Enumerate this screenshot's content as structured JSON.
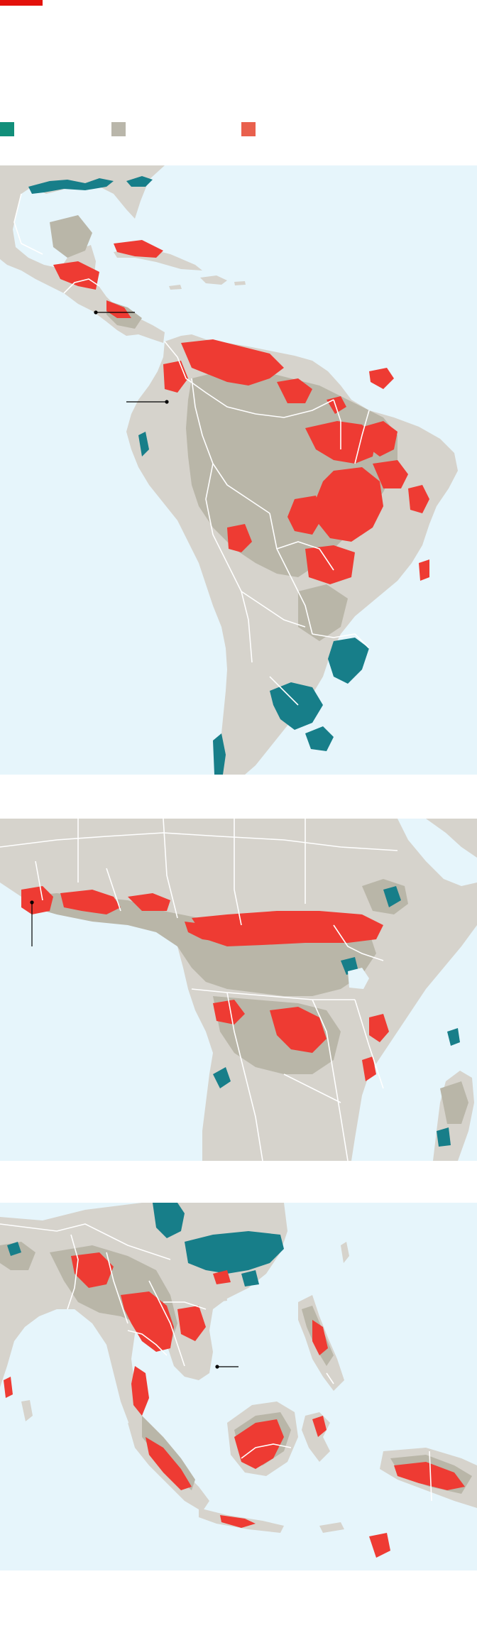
{
  "colors": {
    "accent": "#e3120b",
    "sea": "#e6f5fb",
    "land": "#d6d3cc",
    "forest": "#b9b6a8",
    "gain": "#177e89",
    "loss": "#ee3b33",
    "border": "#ffffff"
  },
  "legend": [
    {
      "color": "#128f7a",
      "label": ""
    },
    {
      "color": "#b9b6aa",
      "label": ""
    },
    {
      "color": "#e9604d",
      "label": ""
    }
  ],
  "maps": [
    {
      "region": "americas"
    },
    {
      "region": "africa"
    },
    {
      "region": "asia"
    }
  ]
}
